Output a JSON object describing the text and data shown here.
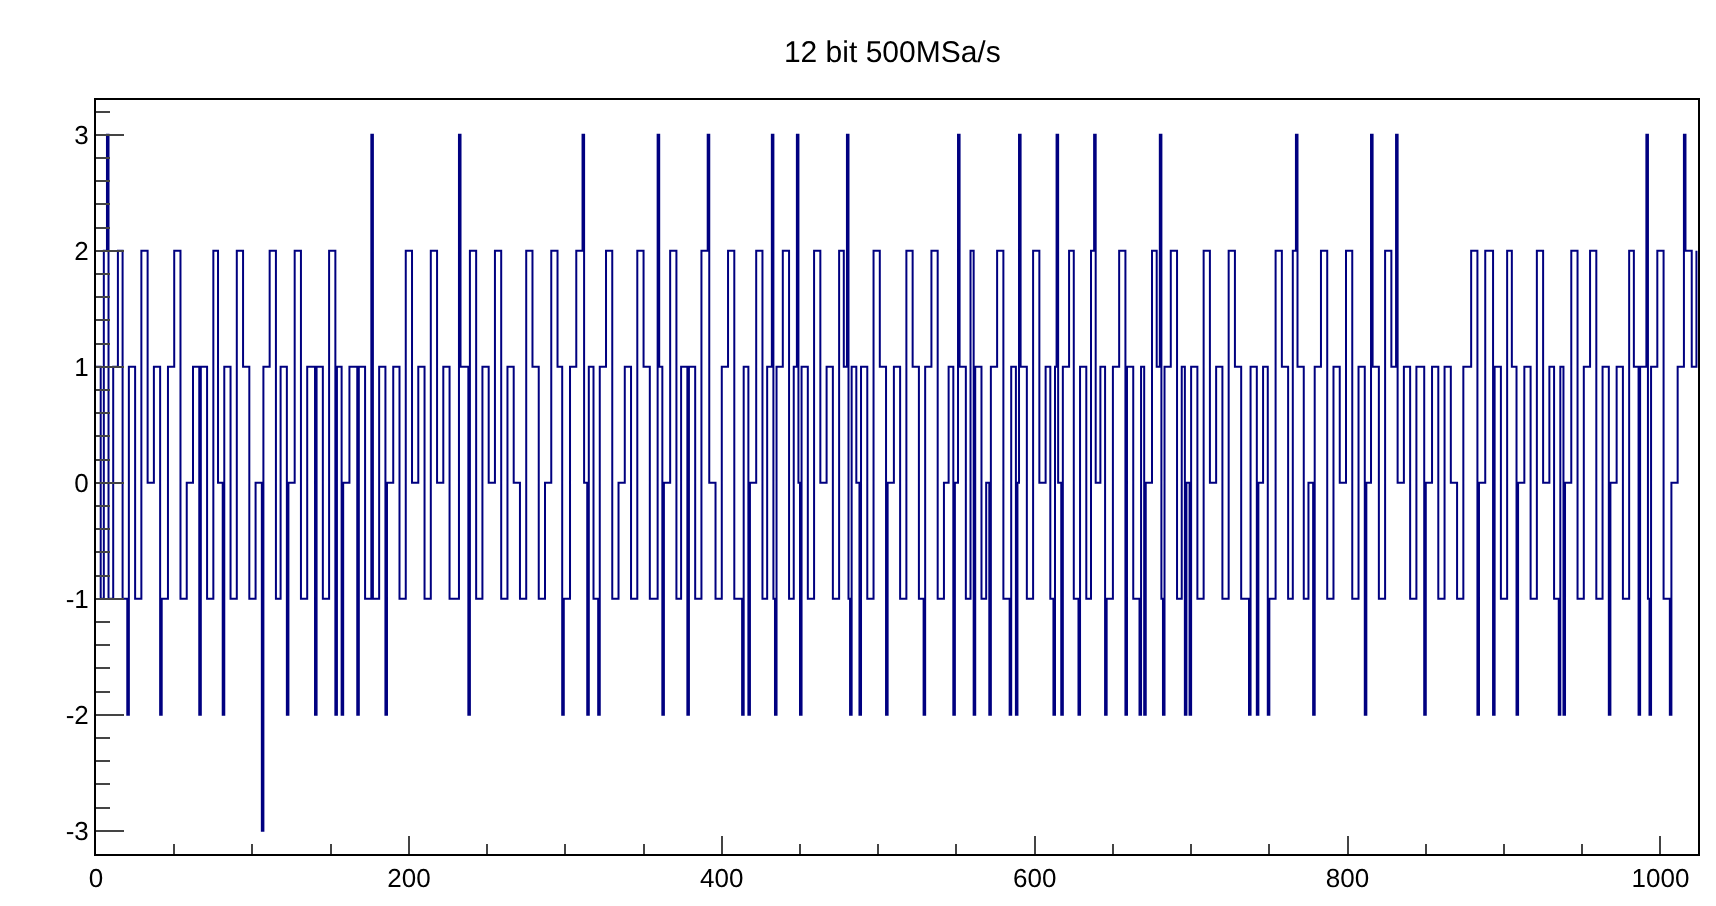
{
  "chart_data": {
    "type": "step",
    "title": "12 bit 500MSa/s",
    "x": [
      0,
      3,
      5,
      7,
      8,
      11,
      14,
      17,
      20,
      21,
      25,
      29,
      33,
      37,
      41,
      42,
      46,
      50,
      54,
      58,
      62,
      66,
      67,
      71,
      75,
      78,
      81,
      82,
      86,
      90,
      94,
      98,
      102,
      106,
      107,
      111,
      115,
      118,
      122,
      123,
      127,
      131,
      135,
      140,
      141,
      145,
      149,
      153,
      154,
      157,
      158,
      162,
      167,
      168,
      172,
      176,
      177,
      181,
      185,
      186,
      190,
      194,
      198,
      202,
      206,
      210,
      214,
      218,
      222,
      226,
      232,
      233,
      238,
      239,
      243,
      247,
      251,
      255,
      259,
      263,
      267,
      271,
      275,
      279,
      283,
      287,
      291,
      295,
      298,
      299,
      303,
      307,
      311,
      312,
      314,
      315,
      318,
      321,
      322,
      326,
      330,
      334,
      338,
      342,
      346,
      350,
      354,
      359,
      360,
      362,
      363,
      367,
      371,
      374,
      378,
      379,
      383,
      387,
      391,
      392,
      396,
      400,
      404,
      408,
      413,
      414,
      417,
      418,
      422,
      426,
      429,
      432,
      433,
      434,
      435,
      439,
      443,
      446,
      448,
      449,
      450,
      451,
      455,
      459,
      463,
      467,
      471,
      475,
      478,
      480,
      481,
      482,
      483,
      486,
      488,
      489,
      493,
      497,
      501,
      505,
      506,
      510,
      514,
      518,
      522,
      526,
      529,
      530,
      534,
      538,
      542,
      545,
      548,
      549,
      551,
      552,
      556,
      559,
      561,
      562,
      566,
      569,
      571,
      572,
      576,
      580,
      584,
      585,
      588,
      589,
      590,
      591,
      595,
      599,
      603,
      607,
      610,
      612,
      613,
      614,
      615,
      617,
      618,
      622,
      625,
      628,
      629,
      633,
      636,
      638,
      639,
      642,
      645,
      646,
      650,
      654,
      658,
      659,
      663,
      667,
      668,
      670,
      671,
      675,
      678,
      680,
      681,
      682,
      683,
      687,
      691,
      694,
      696,
      697,
      699,
      700,
      704,
      708,
      712,
      716,
      720,
      724,
      728,
      732,
      737,
      738,
      742,
      743,
      746,
      749,
      750,
      754,
      758,
      762,
      765,
      767,
      768,
      772,
      775,
      778,
      779,
      783,
      787,
      791,
      795,
      799,
      803,
      807,
      811,
      812,
      815,
      816,
      820,
      824,
      828,
      831,
      832,
      836,
      840,
      844,
      849,
      850,
      854,
      858,
      862,
      866,
      870,
      874,
      879,
      883,
      884,
      888,
      893,
      894,
      898,
      902,
      905,
      908,
      909,
      913,
      917,
      921,
      925,
      929,
      932,
      935,
      936,
      938,
      939,
      943,
      947,
      951,
      955,
      959,
      963,
      967,
      968,
      972,
      976,
      980,
      983,
      986,
      987,
      991,
      992,
      993,
      994,
      998,
      1002,
      1006,
      1007,
      1011,
      1015,
      1016,
      1020,
      1023
    ],
    "series": [
      {
        "color": "#000080",
        "values": [
          1,
          -1,
          2,
          3,
          -1,
          1,
          2,
          -1,
          -2,
          1,
          -1,
          2,
          0,
          1,
          -2,
          -1,
          1,
          2,
          -1,
          0,
          1,
          -2,
          1,
          -1,
          2,
          0,
          -2,
          1,
          -1,
          2,
          1,
          -1,
          0,
          -3,
          1,
          2,
          -1,
          1,
          -2,
          0,
          2,
          -1,
          1,
          -2,
          1,
          -1,
          2,
          -2,
          1,
          -2,
          0,
          1,
          -2,
          1,
          -1,
          3,
          -1,
          1,
          -2,
          0,
          1,
          -1,
          2,
          0,
          1,
          -1,
          2,
          0,
          1,
          -1,
          3,
          1,
          -2,
          2,
          -1,
          1,
          0,
          2,
          -1,
          1,
          0,
          -1,
          2,
          1,
          -1,
          0,
          2,
          1,
          -2,
          -1,
          1,
          2,
          3,
          0,
          -2,
          1,
          -1,
          -2,
          1,
          2,
          -1,
          0,
          1,
          -1,
          2,
          1,
          -1,
          3,
          1,
          -2,
          0,
          2,
          -1,
          1,
          -2,
          1,
          -1,
          2,
          3,
          0,
          -1,
          1,
          2,
          -1,
          -2,
          1,
          -2,
          0,
          2,
          -1,
          1,
          3,
          -1,
          -2,
          1,
          2,
          -1,
          1,
          3,
          0,
          -2,
          1,
          -1,
          2,
          0,
          1,
          -1,
          2,
          1,
          3,
          -1,
          -2,
          1,
          0,
          -2,
          1,
          -1,
          2,
          1,
          -2,
          0,
          1,
          -1,
          2,
          1,
          -1,
          -2,
          1,
          2,
          -1,
          0,
          1,
          -2,
          0,
          3,
          1,
          -1,
          2,
          -2,
          1,
          -1,
          0,
          -2,
          1,
          2,
          -1,
          -2,
          1,
          -2,
          0,
          3,
          1,
          -1,
          2,
          0,
          1,
          -1,
          -2,
          1,
          3,
          0,
          -2,
          1,
          2,
          -1,
          -2,
          1,
          -1,
          2,
          3,
          0,
          1,
          -2,
          -1,
          1,
          2,
          -2,
          1,
          -1,
          -2,
          1,
          -2,
          0,
          2,
          1,
          3,
          -1,
          -2,
          1,
          2,
          -1,
          1,
          -2,
          0,
          -2,
          1,
          -1,
          2,
          0,
          1,
          -1,
          2,
          1,
          -1,
          -2,
          1,
          -2,
          0,
          1,
          -2,
          -1,
          2,
          1,
          -1,
          2,
          3,
          1,
          -1,
          0,
          -2,
          1,
          2,
          -1,
          1,
          0,
          2,
          -1,
          1,
          -2,
          0,
          3,
          1,
          -1,
          2,
          1,
          3,
          0,
          1,
          -1,
          1,
          -2,
          0,
          1,
          -1,
          1,
          0,
          -1,
          1,
          2,
          -2,
          0,
          2,
          -2,
          1,
          -1,
          2,
          1,
          -2,
          0,
          1,
          -1,
          2,
          0,
          1,
          -1,
          -2,
          1,
          -2,
          0,
          2,
          -1,
          1,
          2,
          -1,
          1,
          -2,
          0,
          1,
          -1,
          2,
          1,
          -2,
          1,
          3,
          -1,
          -2,
          1,
          2,
          -1,
          -2,
          0,
          1,
          3,
          2,
          1,
          2
        ]
      }
    ],
    "xlim": [
      0,
      1024
    ],
    "xticks": [
      0,
      200,
      400,
      600,
      800,
      1000
    ],
    "ylim": [
      -3.2,
      3.3
    ],
    "yticks": [
      -3,
      -2,
      -1,
      0,
      1,
      2,
      3
    ],
    "grid": false,
    "marker": "none",
    "line_style": "solid"
  }
}
